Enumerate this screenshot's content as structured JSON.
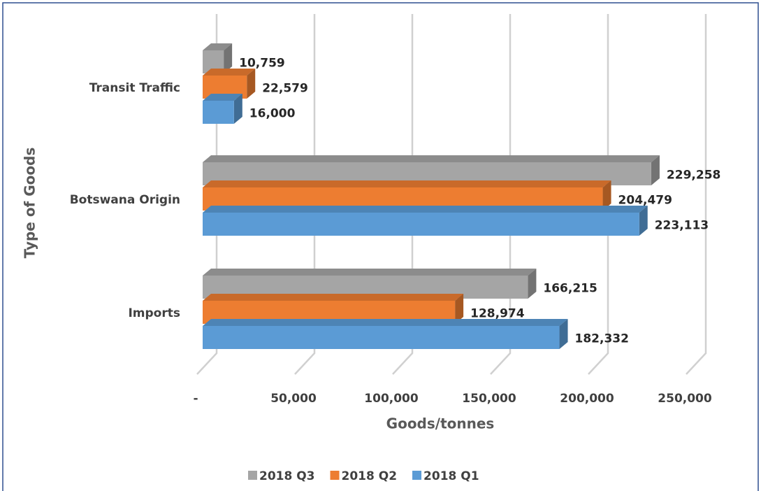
{
  "chart_data": {
    "type": "bar3d-horizontal",
    "xlabel": "Goods/tonnes",
    "ylabel": "Type of Goods",
    "categories": [
      "Transit Traffic",
      "Botswana Origin",
      "Imports"
    ],
    "series": [
      {
        "name": "2018 Q3",
        "color": "#a5a5a5",
        "values": [
          10759,
          229258,
          166215
        ],
        "value_labels": [
          "10,759",
          "229,258",
          "166,215"
        ]
      },
      {
        "name": "2018 Q2",
        "color": "#ed7d31",
        "values": [
          22579,
          204479,
          128974
        ],
        "value_labels": [
          "22,579",
          "204,479",
          "128,974"
        ]
      },
      {
        "name": "2018 Q1",
        "color": "#5b9bd5",
        "values": [
          16000,
          223113,
          182332
        ],
        "value_labels": [
          "16,000",
          "223,113",
          "182,332"
        ]
      }
    ],
    "xlim": [
      0,
      250000
    ],
    "xticks": [
      {
        "value": 0,
        "label": "-"
      },
      {
        "value": 50000,
        "label": "50,000"
      },
      {
        "value": 100000,
        "label": "100,000"
      },
      {
        "value": 150000,
        "label": "150,000"
      },
      {
        "value": 200000,
        "label": "200,000"
      },
      {
        "value": 250000,
        "label": "250,000"
      }
    ],
    "grid": true,
    "legend": "bottom"
  }
}
